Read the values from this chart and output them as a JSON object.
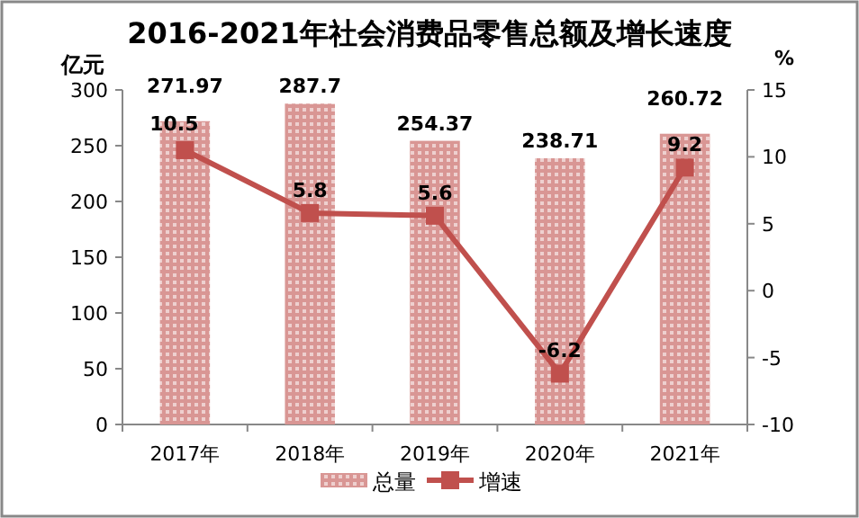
{
  "chart_data": {
    "type": "bar",
    "title": "2016-2021年社会消费品零售总额及增长速度",
    "ylabel": "亿元",
    "y2label": "%",
    "categories": [
      "2017年",
      "2018年",
      "2019年",
      "2020年",
      "2021年"
    ],
    "series": [
      {
        "name": "总量",
        "color": "#d99694",
        "values": [
          271.97,
          287.7,
          254.37,
          238.71,
          260.72
        ]
      },
      {
        "name": "增速",
        "type": "line",
        "axis": "y2",
        "color": "#c0504d",
        "values": [
          10.5,
          5.8,
          5.6,
          -6.2,
          9.2
        ]
      }
    ],
    "ylim": [
      0,
      300
    ],
    "yticks": [
      0,
      50,
      100,
      150,
      200,
      250,
      300
    ],
    "y2lim": [
      -10,
      15
    ],
    "y2ticks": [
      -10,
      -5,
      0,
      5,
      10,
      15
    ],
    "data_labels": true,
    "legend": "bottom",
    "marker": "square",
    "line_style": "solid"
  }
}
